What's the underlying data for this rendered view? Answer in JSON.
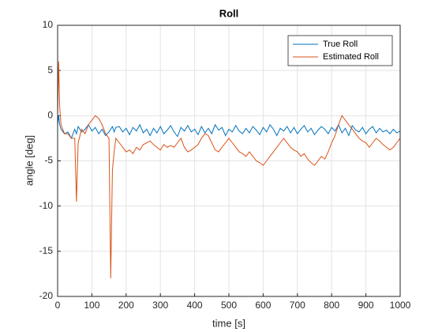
{
  "chart_data": {
    "type": "line",
    "title": "Roll",
    "xlabel": "time [s]",
    "ylabel": "angle [deg]",
    "x": [
      0,
      3,
      6,
      10,
      20,
      30,
      40,
      50,
      55,
      60,
      70,
      80,
      90,
      100,
      110,
      120,
      130,
      140,
      150,
      155,
      160,
      165,
      170,
      180,
      190,
      200,
      210,
      220,
      230,
      240,
      250,
      260,
      270,
      280,
      290,
      300,
      310,
      320,
      330,
      340,
      350,
      360,
      370,
      380,
      390,
      400,
      410,
      420,
      430,
      440,
      450,
      460,
      470,
      480,
      490,
      500,
      510,
      520,
      530,
      540,
      550,
      560,
      570,
      580,
      590,
      600,
      610,
      620,
      630,
      640,
      650,
      660,
      670,
      680,
      690,
      700,
      710,
      720,
      730,
      740,
      750,
      760,
      770,
      780,
      790,
      800,
      810,
      820,
      830,
      840,
      850,
      860,
      870,
      880,
      890,
      900,
      910,
      920,
      930,
      940,
      950,
      960,
      970,
      980,
      990,
      1000
    ],
    "series": [
      {
        "name": "True Roll",
        "color": "#0072BD",
        "values": [
          -1,
          0,
          -1,
          -1.5,
          -2,
          -1.8,
          -2.5,
          -1.5,
          -2,
          -1.2,
          -1.8,
          -1.5,
          -1,
          -1.7,
          -1.3,
          -2,
          -1.5,
          -2.2,
          -1.8,
          -1.5,
          -1.2,
          -1.8,
          -1.3,
          -1.2,
          -1.8,
          -1.4,
          -2.1,
          -1.3,
          -1.7,
          -1.0,
          -1.9,
          -1.5,
          -2.2,
          -1.4,
          -1.9,
          -1.2,
          -2.0,
          -1.6,
          -1.1,
          -1.8,
          -2.3,
          -1.3,
          -1.7,
          -1.1,
          -1.8,
          -1.5,
          -2.1,
          -1.2,
          -1.9,
          -1.4,
          -2.0,
          -1.0,
          -1.6,
          -1.3,
          -2.2,
          -1.5,
          -1.8,
          -1.1,
          -1.7,
          -2.0,
          -1.4,
          -1.9,
          -1.2,
          -1.6,
          -2.1,
          -1.3,
          -1.8,
          -1.0,
          -1.5,
          -2.2,
          -1.4,
          -1.7,
          -1.2,
          -1.9,
          -1.3,
          -2.0,
          -1.5,
          -1.1,
          -1.8,
          -1.4,
          -2.1,
          -1.6,
          -1.2,
          -1.5,
          -2.0,
          -1.3,
          -1.7,
          -1.0,
          -1.9,
          -1.4,
          -2.2,
          -1.1,
          -1.6,
          -1.8,
          -1.3,
          -2.0,
          -1.5,
          -1.2,
          -1.9,
          -1.4,
          -1.8,
          -1.6,
          -2.0,
          -1.5,
          -1.9,
          -1.7
        ]
      },
      {
        "name": "Estimated Roll",
        "color": "#D95319",
        "values": [
          0,
          6,
          1,
          -1,
          -2,
          -2,
          -2.5,
          -2.5,
          -9.5,
          -3,
          -1.5,
          -2,
          -1,
          -0.5,
          0,
          -0.3,
          -1,
          -2,
          -2.5,
          -18,
          -6,
          -4,
          -2.5,
          -3,
          -3.5,
          -4,
          -3.8,
          -4.2,
          -3.5,
          -3.8,
          -3.2,
          -3,
          -2.8,
          -3.2,
          -3.5,
          -3.8,
          -3.2,
          -3.5,
          -3.3,
          -3.5,
          -3,
          -2.5,
          -3.5,
          -4,
          -3.8,
          -3.5,
          -3.2,
          -2.5,
          -2,
          -2.2,
          -3,
          -3.8,
          -4,
          -3.5,
          -3,
          -2.5,
          -3,
          -3.5,
          -4,
          -4.2,
          -4.5,
          -4,
          -4.5,
          -5,
          -5.2,
          -5.5,
          -5,
          -4.5,
          -4,
          -3.5,
          -3,
          -2.5,
          -3,
          -3.5,
          -3.8,
          -4,
          -4.5,
          -4.2,
          -4.8,
          -5.2,
          -5.5,
          -5,
          -4.5,
          -4.8,
          -4,
          -3,
          -2.2,
          -1,
          0,
          -0.5,
          -1,
          -1.5,
          -2,
          -2.5,
          -2.8,
          -3,
          -3.5,
          -3,
          -2.5,
          -2.8,
          -3.2,
          -3.5,
          -3.8,
          -3.5,
          -3,
          -2.5
        ]
      }
    ],
    "xlim": [
      0,
      1000
    ],
    "xticks": [
      0,
      100,
      200,
      300,
      400,
      500,
      600,
      700,
      800,
      900,
      1000
    ],
    "ylim": [
      -20,
      10
    ],
    "yticks": [
      -20,
      -15,
      -10,
      -5,
      0,
      5,
      10
    ],
    "grid": true,
    "legend": "northeast"
  }
}
